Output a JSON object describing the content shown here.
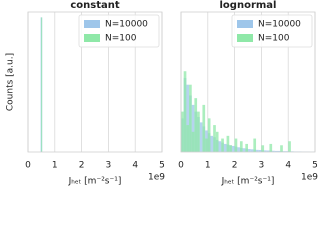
{
  "chart_data": [
    {
      "type": "histogram",
      "title": "constant",
      "ylabel": "Counts [a.u.]",
      "xlabel": "Jₕₑₜ [m⁻²s⁻¹]",
      "x_offset_label": "1e9",
      "xlim": [
        0,
        5
      ],
      "xticks": [
        0,
        1,
        2,
        3,
        4,
        5
      ],
      "ylim": [
        0,
        1.04
      ],
      "grid": true,
      "legend": "upper right",
      "series": [
        {
          "name": "N=10000",
          "color": "#9ec6ea",
          "bins": [
            0.47,
            0.53
          ],
          "values": [
            1
          ]
        },
        {
          "name": "N=100",
          "color": "#8fe8a8",
          "bins": [
            0.49,
            0.51
          ],
          "values": [
            1
          ]
        }
      ]
    },
    {
      "type": "histogram",
      "title": "lognormal",
      "xlabel": "Jₕₑₜ [m⁻²s⁻¹]",
      "x_offset_label": "1e9",
      "xlim": [
        0,
        5
      ],
      "xticks": [
        0,
        1,
        2,
        3,
        4,
        5
      ],
      "ylim": [
        0,
        1.04
      ],
      "grid": true,
      "legend": "upper right",
      "series": [
        {
          "name": "N=10000",
          "color": "#9ec6ea",
          "bins": [
            0,
            0.1,
            0.2,
            0.3,
            0.4,
            0.5,
            0.6,
            0.7,
            0.8,
            0.9,
            1,
            1.1,
            1.2,
            1.3,
            1.4,
            1.5,
            1.6,
            1.7,
            1.8,
            1.9,
            2,
            2.1,
            2.2,
            2.3,
            2.4,
            2.5,
            2.6,
            2.7,
            2.8,
            2.9,
            3,
            3.1,
            3.2,
            3.3,
            3.4,
            3.5,
            3.6,
            3.7,
            3.8,
            3.9,
            4,
            4.1,
            4.2,
            4.3,
            4.4,
            4.5,
            4.6,
            4.7,
            4.8,
            4.9,
            5
          ],
          "values": [
            0.25,
            0.55,
            0.5,
            0.42,
            0.35,
            0.3,
            0.26,
            0.22,
            0.19,
            0.16,
            0.14,
            0.12,
            0.11,
            0.09,
            0.08,
            0.07,
            0.06,
            0.055,
            0.05,
            0.045,
            0.04,
            0.035,
            0.03,
            0.028,
            0.025,
            0.022,
            0.02,
            0.018,
            0.016,
            0.015,
            0.013,
            0.012,
            0.011,
            0.01,
            0.009,
            0.008,
            0.008,
            0.007,
            0.006,
            0.006,
            0.005,
            0.005,
            0.004,
            0.004,
            0.004,
            0.003,
            0.003,
            0.003,
            0.002,
            0.002
          ]
        },
        {
          "name": "N=100",
          "color": "#8fe8a8",
          "bins": [
            0,
            0.1,
            0.2,
            0.3,
            0.4,
            0.5,
            0.6,
            0.7,
            0.8,
            0.9,
            1,
            1.1,
            1.2,
            1.3,
            1.4,
            1.5,
            1.6,
            1.7,
            1.8,
            1.9,
            2,
            2.1,
            2.2,
            2.3,
            2.4,
            2.5,
            2.6,
            2.7,
            2.8,
            2.9,
            3,
            3.1,
            3.2,
            3.3,
            3.4,
            3.5,
            3.6,
            3.7,
            3.8,
            3.9,
            4,
            4.1,
            4.2,
            4.3,
            4.4,
            4.5,
            4.6,
            4.7,
            4.8,
            4.9,
            5
          ],
          "values": [
            0.3,
            0.6,
            0.2,
            0.5,
            0.15,
            0.4,
            0.3,
            0,
            0.35,
            0.1,
            0.25,
            0,
            0.2,
            0.15,
            0,
            0.1,
            0,
            0.12,
            0.05,
            0,
            0.1,
            0,
            0.08,
            0,
            0.06,
            0,
            0,
            0.1,
            0,
            0,
            0.05,
            0,
            0,
            0.06,
            0,
            0,
            0,
            0.05,
            0,
            0,
            0.08,
            0,
            0,
            0,
            0,
            0,
            0,
            0,
            0,
            0
          ]
        }
      ]
    }
  ]
}
